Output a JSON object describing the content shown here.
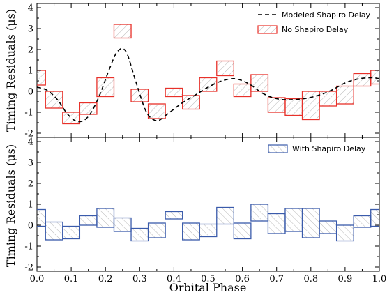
{
  "chart_data": [
    {
      "type": "bar",
      "panel": "top",
      "ylabel": "Timing Residuals (μs)",
      "xlim": [
        0.0,
        1.0
      ],
      "ylim": [
        -2.2,
        4.2
      ],
      "yticks": [
        -2,
        -1,
        0,
        1,
        2,
        3,
        4
      ],
      "grid": false,
      "legend_position": "top-right",
      "legend": [
        {
          "label": "Modeled Shapiro Delay",
          "style": "dashed-line",
          "color": "#000000"
        },
        {
          "label": "No Shapiro Delay",
          "style": "hatched-box",
          "color": "#e8312a"
        }
      ],
      "series": [
        {
          "name": "No Shapiro Delay",
          "color": "#e8312a",
          "bin_width": 0.05,
          "x": [
            0.0,
            0.05,
            0.1,
            0.15,
            0.2,
            0.25,
            0.3,
            0.35,
            0.4,
            0.45,
            0.5,
            0.55,
            0.6,
            0.65,
            0.7,
            0.75,
            0.8,
            0.85,
            0.9,
            0.95,
            1.0
          ],
          "low": [
            0.3,
            -0.8,
            -1.55,
            -1.1,
            -0.25,
            2.55,
            -0.5,
            -1.3,
            -0.25,
            -0.85,
            0.0,
            0.75,
            -0.25,
            0.0,
            -1.0,
            -1.15,
            -1.35,
            -0.7,
            -0.6,
            0.25,
            0.35
          ],
          "high": [
            1.0,
            0.0,
            -1.0,
            -0.55,
            0.65,
            3.2,
            0.1,
            -0.6,
            0.15,
            -0.2,
            0.65,
            1.45,
            0.35,
            0.8,
            -0.3,
            -0.35,
            0.0,
            0.0,
            0.25,
            0.85,
            1.0
          ]
        },
        {
          "name": "Modeled Shapiro Delay",
          "type": "line",
          "style": "dashed",
          "color": "#000000",
          "x": [
            0.0,
            0.03,
            0.06,
            0.09,
            0.12,
            0.15,
            0.18,
            0.21,
            0.235,
            0.26,
            0.29,
            0.32,
            0.35,
            0.38,
            0.42,
            0.46,
            0.5,
            0.54,
            0.58,
            0.62,
            0.66,
            0.7,
            0.74,
            0.78,
            0.82,
            0.86,
            0.9,
            0.94,
            0.98,
            1.0
          ],
          "y": [
            0.2,
            0.05,
            -0.4,
            -1.1,
            -1.45,
            -1.2,
            -0.3,
            1.0,
            1.9,
            1.9,
            0.4,
            -1.0,
            -1.4,
            -1.1,
            -0.6,
            -0.2,
            0.2,
            0.5,
            0.6,
            0.35,
            -0.1,
            -0.35,
            -0.4,
            -0.35,
            -0.2,
            0.05,
            0.4,
            0.6,
            0.65,
            0.6
          ]
        }
      ]
    },
    {
      "type": "bar",
      "panel": "bottom",
      "ylabel": "Timing Residuals (μs)",
      "xlabel": "Orbital Phase",
      "xlim": [
        0.0,
        1.0
      ],
      "ylim": [
        -2.2,
        4.2
      ],
      "yticks": [
        -2,
        -1,
        0,
        1,
        2,
        3,
        4
      ],
      "xticks": [
        "0.0",
        "0.1",
        "0.2",
        "0.3",
        "0.4",
        "0.5",
        "0.6",
        "0.7",
        "0.8",
        "0.9",
        "1.0"
      ],
      "grid": false,
      "legend_position": "top-right",
      "legend": [
        {
          "label": "With Shapiro Delay",
          "style": "hatched-box",
          "color": "#3a5bab"
        }
      ],
      "series": [
        {
          "name": "With Shapiro Delay",
          "color": "#3a5bab",
          "bin_width": 0.05,
          "x": [
            0.0,
            0.05,
            0.1,
            0.15,
            0.2,
            0.25,
            0.3,
            0.35,
            0.4,
            0.45,
            0.5,
            0.55,
            0.6,
            0.65,
            0.7,
            0.75,
            0.8,
            0.85,
            0.9,
            0.95,
            1.0
          ],
          "low": [
            -0.05,
            -0.7,
            -0.65,
            0.0,
            -0.1,
            -0.3,
            -0.75,
            -0.6,
            0.3,
            -0.7,
            -0.55,
            0.05,
            -0.65,
            0.2,
            -0.4,
            -0.3,
            -0.6,
            -0.4,
            -0.75,
            -0.1,
            -0.05
          ],
          "high": [
            0.75,
            0.15,
            -0.05,
            0.45,
            0.8,
            0.35,
            -0.15,
            0.1,
            0.65,
            0.1,
            0.05,
            0.85,
            0.1,
            1.0,
            0.55,
            0.8,
            0.8,
            0.2,
            0.0,
            0.45,
            0.75
          ]
        }
      ]
    }
  ]
}
